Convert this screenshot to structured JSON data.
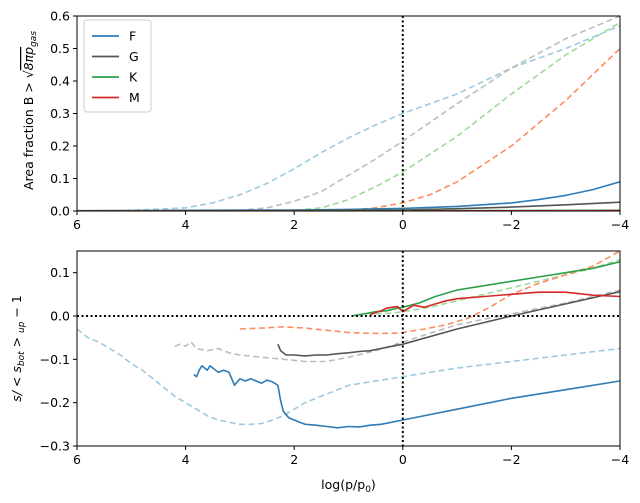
{
  "chart_data": [
    {
      "type": "line",
      "panel": "top",
      "title": "",
      "xlabel": "",
      "ylabel_text": "Area fraction B > ",
      "ylabel_sqrt_text": "8πp",
      "ylabel_subscript": "gas",
      "xlim": [
        6,
        -4
      ],
      "ylim": [
        0,
        0.6
      ],
      "xticks": [
        6,
        4,
        2,
        0,
        -2,
        -4
      ],
      "xtick_labels": [
        "6",
        "4",
        "2",
        "0",
        "−2",
        "−4"
      ],
      "yticks": [
        0,
        0.1,
        0.2,
        0.3,
        0.4,
        0.5,
        0.6
      ],
      "ytick_labels": [
        "0.0",
        "0.1",
        "0.2",
        "0.3",
        "0.4",
        "0.5",
        "0.6"
      ],
      "vline_x": 0,
      "legend": {
        "position": "top-left",
        "entries": [
          "F",
          "G",
          "K",
          "M"
        ]
      },
      "series": [
        {
          "name": "F",
          "color": "#2f7bb6",
          "style": "solid",
          "x": [
            6,
            4,
            2,
            1,
            0,
            -1,
            -2,
            -2.5,
            -3,
            -3.5,
            -4
          ],
          "y": [
            0.001,
            0.002,
            0.003,
            0.005,
            0.008,
            0.014,
            0.025,
            0.035,
            0.048,
            0.066,
            0.09
          ]
        },
        {
          "name": "G",
          "color": "#555555",
          "style": "solid",
          "x": [
            6,
            2,
            0,
            -1,
            -2,
            -3,
            -4
          ],
          "y": [
            0.0,
            0.001,
            0.003,
            0.007,
            0.012,
            0.019,
            0.027
          ]
        },
        {
          "name": "K",
          "color": "#2ca048",
          "style": "solid",
          "x": [
            6,
            0,
            -4
          ],
          "y": [
            0.0,
            0.001,
            0.002
          ]
        },
        {
          "name": "M",
          "color": "#d62728",
          "style": "solid",
          "x": [
            6,
            0,
            -4
          ],
          "y": [
            0.0,
            0.0,
            0.001
          ]
        },
        {
          "name": "F (dashed)",
          "color": "#9ecae1",
          "style": "dashed",
          "x": [
            6,
            5,
            4,
            3.5,
            3,
            2.5,
            2,
            1.5,
            1,
            0.5,
            0,
            -1,
            -2,
            -3,
            -3.5,
            -4
          ],
          "y": [
            0.0,
            0.002,
            0.01,
            0.025,
            0.05,
            0.085,
            0.13,
            0.18,
            0.225,
            0.265,
            0.3,
            0.36,
            0.44,
            0.5,
            0.535,
            0.57
          ]
        },
        {
          "name": "G (dashed)",
          "color": "#bdbdbd",
          "style": "dashed",
          "x": [
            6,
            3,
            2.5,
            2,
            1.5,
            1,
            0.5,
            0,
            -1,
            -2,
            -3,
            -4
          ],
          "y": [
            0.0,
            0.002,
            0.01,
            0.03,
            0.06,
            0.11,
            0.16,
            0.215,
            0.33,
            0.44,
            0.53,
            0.6
          ]
        },
        {
          "name": "K (dashed)",
          "color": "#a1d99b",
          "style": "dashed",
          "x": [
            6,
            2,
            1.5,
            1,
            0.5,
            0,
            -1,
            -2,
            -3,
            -4
          ],
          "y": [
            0.0,
            0.002,
            0.01,
            0.035,
            0.075,
            0.12,
            0.23,
            0.36,
            0.48,
            0.58
          ]
        },
        {
          "name": "M (dashed)",
          "color": "#fc8d62",
          "style": "dashed",
          "x": [
            6,
            1,
            0.5,
            0,
            -0.5,
            -1,
            -2,
            -3,
            -4
          ],
          "y": [
            0.0,
            0.002,
            0.01,
            0.025,
            0.05,
            0.09,
            0.2,
            0.34,
            0.5
          ]
        }
      ]
    },
    {
      "type": "line",
      "panel": "bottom",
      "title": "",
      "xlabel": "log(p/p",
      "xlabel_subscript": "0",
      "xlabel_close": ")",
      "ylabel_text": "s/ < s",
      "ylabel_subscript1": "bot",
      "ylabel_mid": " > ",
      "ylabel_subscript2": "up",
      "ylabel_tail": " − 1",
      "xlim": [
        6,
        -4
      ],
      "ylim": [
        -0.3,
        0.15
      ],
      "xticks": [
        6,
        4,
        2,
        0,
        -2,
        -4
      ],
      "xtick_labels": [
        "6",
        "4",
        "2",
        "0",
        "−2",
        "−4"
      ],
      "yticks": [
        -0.3,
        -0.2,
        -0.1,
        0.0,
        0.1
      ],
      "ytick_labels": [
        "−0.3",
        "−0.2",
        "−0.1",
        "0.0",
        "0.1"
      ],
      "vline_x": 0,
      "hline_y": 0,
      "series": [
        {
          "name": "F",
          "color": "#2f7bb6",
          "style": "solid",
          "x": [
            3.85,
            3.8,
            3.75,
            3.7,
            3.65,
            3.6,
            3.55,
            3.5,
            3.4,
            3.3,
            3.2,
            3.1,
            3.0,
            2.9,
            2.8,
            2.7,
            2.6,
            2.5,
            2.4,
            2.3,
            2.25,
            2.2,
            2.1,
            2.0,
            1.9,
            1.8,
            1.6,
            1.4,
            1.2,
            1.0,
            0.8,
            0.6,
            0.4,
            0.2,
            0,
            -1,
            -2,
            -3,
            -4
          ],
          "y": [
            -0.135,
            -0.14,
            -0.125,
            -0.115,
            -0.12,
            -0.125,
            -0.115,
            -0.12,
            -0.13,
            -0.125,
            -0.13,
            -0.16,
            -0.145,
            -0.15,
            -0.145,
            -0.15,
            -0.155,
            -0.148,
            -0.152,
            -0.16,
            -0.195,
            -0.22,
            -0.235,
            -0.24,
            -0.245,
            -0.25,
            -0.252,
            -0.255,
            -0.258,
            -0.255,
            -0.256,
            -0.252,
            -0.25,
            -0.245,
            -0.24,
            -0.215,
            -0.19,
            -0.17,
            -0.15
          ]
        },
        {
          "name": "G",
          "color": "#555555",
          "style": "solid",
          "x": [
            2.3,
            2.25,
            2.2,
            2.15,
            2.0,
            1.8,
            1.6,
            1.4,
            1.2,
            1.0,
            0.8,
            0.6,
            0.4,
            0.2,
            0,
            -1,
            -2,
            -3,
            -4
          ],
          "y": [
            -0.065,
            -0.08,
            -0.085,
            -0.09,
            -0.09,
            -0.092,
            -0.09,
            -0.09,
            -0.087,
            -0.085,
            -0.082,
            -0.08,
            -0.075,
            -0.07,
            -0.065,
            -0.03,
            0.0,
            0.028,
            0.056
          ]
        },
        {
          "name": "K",
          "color": "#2ca048",
          "style": "solid",
          "x": [
            0.9,
            0.7,
            0.5,
            0.3,
            0.1,
            0,
            -0.3,
            -0.6,
            -1,
            -1.5,
            -2,
            -2.5,
            -3,
            -3.5,
            -4
          ],
          "y": [
            0.001,
            0.005,
            0.01,
            0.012,
            0.018,
            0.02,
            0.03,
            0.045,
            0.06,
            0.07,
            0.08,
            0.09,
            0.1,
            0.11,
            0.125
          ]
        },
        {
          "name": "M",
          "color": "#d62728",
          "style": "solid",
          "x": [
            0.6,
            0.5,
            0.4,
            0.3,
            0.2,
            0.1,
            0,
            -0.2,
            -0.4,
            -0.6,
            -0.8,
            -1,
            -1.5,
            -2,
            -2.5,
            -3,
            -3.5,
            -4
          ],
          "y": [
            0.003,
            0.008,
            0.012,
            0.018,
            0.02,
            0.022,
            0.01,
            0.025,
            0.02,
            0.028,
            0.035,
            0.04,
            0.045,
            0.05,
            0.055,
            0.055,
            0.048,
            0.045
          ]
        },
        {
          "name": "F (dashed)",
          "color": "#9ecae1",
          "style": "dashed",
          "x": [
            6,
            5.8,
            5.6,
            5.4,
            5.2,
            5.0,
            4.8,
            4.6,
            4.4,
            4.2,
            4.0,
            3.8,
            3.6,
            3.4,
            3.2,
            3.0,
            2.8,
            2.6,
            2.4,
            2.2,
            2.0,
            1.8,
            1.6,
            1.4,
            1.2,
            1.0,
            0.5,
            0,
            -1,
            -2,
            -3,
            -4
          ],
          "y": [
            -0.03,
            -0.05,
            -0.06,
            -0.075,
            -0.09,
            -0.11,
            -0.125,
            -0.145,
            -0.165,
            -0.185,
            -0.2,
            -0.215,
            -0.23,
            -0.24,
            -0.245,
            -0.25,
            -0.25,
            -0.248,
            -0.24,
            -0.23,
            -0.215,
            -0.2,
            -0.19,
            -0.18,
            -0.17,
            -0.16,
            -0.15,
            -0.14,
            -0.12,
            -0.105,
            -0.09,
            -0.075
          ]
        },
        {
          "name": "G (dashed)",
          "color": "#bdbdbd",
          "style": "dashed",
          "x": [
            4.2,
            4.1,
            4.0,
            3.9,
            3.8,
            3.6,
            3.4,
            3.2,
            3.0,
            2.6,
            2.2,
            1.8,
            1.4,
            1.0,
            0.5,
            0,
            -0.5,
            -1,
            -2,
            -3,
            -4
          ],
          "y": [
            -0.07,
            -0.065,
            -0.07,
            -0.06,
            -0.075,
            -0.08,
            -0.075,
            -0.085,
            -0.09,
            -0.095,
            -0.1,
            -0.105,
            -0.105,
            -0.095,
            -0.08,
            -0.06,
            -0.04,
            -0.02,
            0.005,
            0.03,
            0.06
          ]
        },
        {
          "name": "K (dashed)",
          "color": "#a1d99b",
          "style": "dashed",
          "x": [
            0.5,
            0.3,
            0.1,
            0,
            -0.5,
            -1,
            -1.5,
            -2,
            -2.5,
            -3,
            -3.5,
            -4
          ],
          "y": [
            0.005,
            0.006,
            0.008,
            0.01,
            0.02,
            0.035,
            0.05,
            0.065,
            0.08,
            0.095,
            0.11,
            0.13
          ]
        },
        {
          "name": "M (dashed)",
          "color": "#fc8d62",
          "style": "dashed",
          "x": [
            3.0,
            2.6,
            2.2,
            1.8,
            1.4,
            1.0,
            0.6,
            0.2,
            0,
            -0.4,
            -0.8,
            -1.2,
            -1.6,
            -2,
            -2.5,
            -3,
            -3.5,
            -4
          ],
          "y": [
            -0.03,
            -0.028,
            -0.025,
            -0.028,
            -0.033,
            -0.038,
            -0.04,
            -0.04,
            -0.038,
            -0.03,
            -0.02,
            -0.005,
            0.02,
            0.05,
            0.075,
            0.095,
            0.115,
            0.15
          ]
        }
      ]
    }
  ]
}
